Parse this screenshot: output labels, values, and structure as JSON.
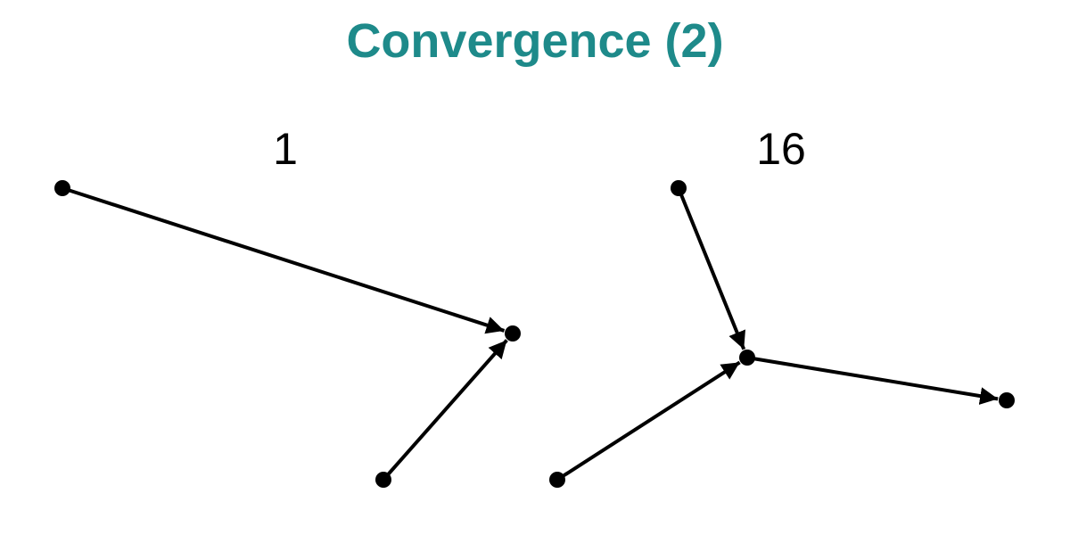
{
  "title": "Convergence (2)",
  "colors": {
    "title": "#1e8a8a",
    "edge": "#000000",
    "node": "#000000"
  },
  "panels": [
    {
      "label": "1",
      "nodes": [
        "a",
        "b",
        "c"
      ],
      "edges": [
        {
          "from": "a",
          "to": "c"
        },
        {
          "from": "b",
          "to": "c"
        }
      ]
    },
    {
      "label": "16",
      "nodes": [
        "a",
        "b",
        "c",
        "d"
      ],
      "edges": [
        {
          "from": "a",
          "to": "c"
        },
        {
          "from": "b",
          "to": "c"
        },
        {
          "from": "c",
          "to": "d"
        }
      ]
    }
  ]
}
